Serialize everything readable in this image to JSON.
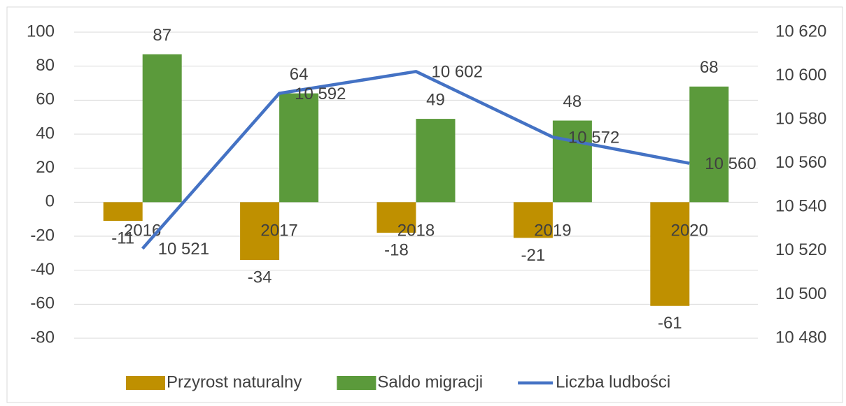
{
  "chart_data": {
    "type": "bar-line",
    "categories": [
      "2016",
      "2017",
      "2018",
      "2019",
      "2020"
    ],
    "series": [
      {
        "name": "Przyrost naturalny",
        "type": "bar",
        "color": "#bf9000",
        "values": [
          -11,
          -34,
          -18,
          -21,
          -61
        ]
      },
      {
        "name": "Saldo migracji",
        "type": "bar",
        "color": "#5b9a3b",
        "values": [
          87,
          64,
          49,
          48,
          68
        ]
      },
      {
        "name": "Liczba ludbości",
        "type": "line",
        "axis": "y2",
        "color": "#4472c4",
        "values": [
          10521,
          10592,
          10602,
          10572,
          10560
        ],
        "value_labels": [
          "10 521",
          "10 592",
          "10 602",
          "10 572",
          "10 560"
        ]
      }
    ],
    "ylim": [
      -80,
      100
    ],
    "yticks": [
      -80,
      -60,
      -40,
      -20,
      0,
      20,
      40,
      60,
      80,
      100
    ],
    "y2lim": [
      10480,
      10620
    ],
    "y2ticks": [
      {
        "value": 10480,
        "label": "10 480"
      },
      {
        "value": 10500,
        "label": "10 500"
      },
      {
        "value": 10520,
        "label": "10 520"
      },
      {
        "value": 10540,
        "label": "10 540"
      },
      {
        "value": 10560,
        "label": "10 560"
      },
      {
        "value": 10580,
        "label": "10 580"
      },
      {
        "value": 10600,
        "label": "10 600"
      },
      {
        "value": 10620,
        "label": "10 620"
      }
    ],
    "grid": true,
    "legend": "bottom"
  }
}
